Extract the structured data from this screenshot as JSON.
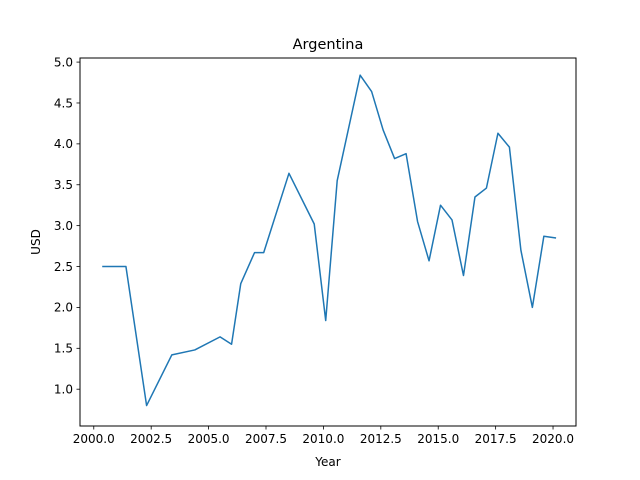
{
  "chart_data": {
    "type": "line",
    "title": "Argentina",
    "xlabel": "Year",
    "ylabel": "USD",
    "xlim": [
      1999.4,
      2021.0
    ],
    "ylim": [
      0.55,
      5.05
    ],
    "grid": false,
    "x_ticks": [
      2000.0,
      2002.5,
      2005.0,
      2007.5,
      2010.0,
      2012.5,
      2015.0,
      2017.5,
      2020.0
    ],
    "x_tick_labels": [
      "2000.0",
      "2002.5",
      "2005.0",
      "2007.5",
      "2010.0",
      "2012.5",
      "2015.0",
      "2017.5",
      "2020.0"
    ],
    "y_ticks": [
      1.0,
      1.5,
      2.0,
      2.5,
      3.0,
      3.5,
      4.0,
      4.5,
      5.0
    ],
    "y_tick_labels": [
      "1.0",
      "1.5",
      "2.0",
      "2.5",
      "3.0",
      "3.5",
      "4.0",
      "4.5",
      "5.0"
    ],
    "series": [
      {
        "color": "#1f77b4",
        "x": [
          2000.4,
          2001.4,
          2002.3,
          2003.4,
          2004.4,
          2005.5,
          2006.0,
          2006.4,
          2007.0,
          2007.4,
          2008.5,
          2009.6,
          2010.1,
          2010.6,
          2011.6,
          2012.1,
          2012.6,
          2013.1,
          2013.6,
          2014.1,
          2014.6,
          2015.1,
          2015.6,
          2016.1,
          2016.6,
          2017.1,
          2017.6,
          2018.1,
          2018.6,
          2019.1,
          2019.6,
          2020.1
        ],
        "y": [
          2.5,
          2.5,
          0.8,
          1.42,
          1.48,
          1.64,
          1.55,
          2.29,
          2.67,
          2.67,
          3.64,
          3.02,
          1.84,
          3.55,
          4.84,
          4.64,
          4.17,
          3.82,
          3.88,
          3.05,
          2.57,
          3.25,
          3.07,
          2.39,
          3.35,
          3.46,
          4.13,
          3.96,
          2.7,
          2.0,
          2.87,
          2.85
        ]
      }
    ]
  }
}
